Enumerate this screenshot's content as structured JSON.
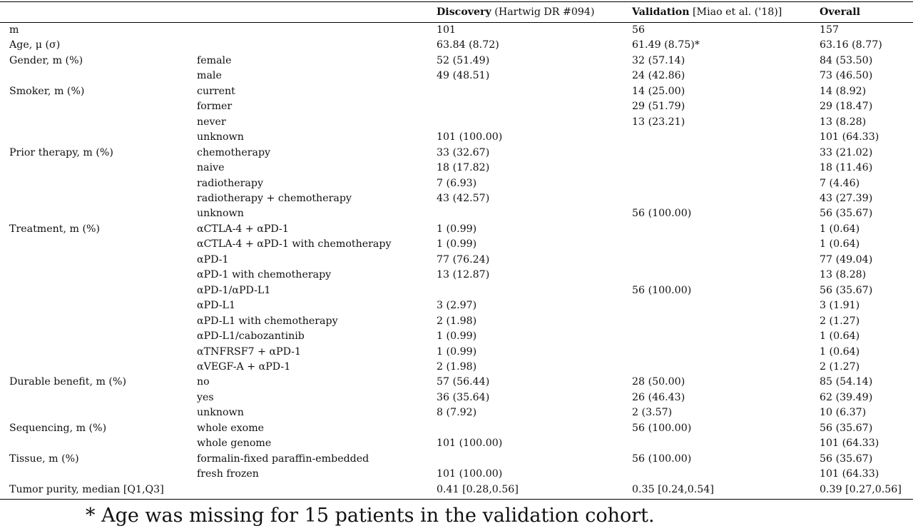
{
  "header": {
    "col_empty_1": "",
    "col_empty_2": "",
    "discovery_bold": "Discovery",
    "discovery_rest": " (Hartwig DR #094)",
    "validation_bold": "Validation",
    "validation_rest": " [Miao et al. ('18)]",
    "overall": "Overall"
  },
  "rows": [
    {
      "var": "m",
      "level": "",
      "discovery": "101",
      "validation": "56",
      "overall": "157"
    },
    {
      "var": "Age, μ (σ)",
      "level": "",
      "discovery": "63.84 (8.72)",
      "validation": "61.49 (8.75)*",
      "overall": "63.16 (8.77)"
    },
    {
      "var": "Gender, m (%)",
      "level": "female",
      "discovery": "52 (51.49)",
      "validation": "32 (57.14)",
      "overall": "84 (53.50)"
    },
    {
      "var": "",
      "level": "male",
      "discovery": "49 (48.51)",
      "validation": "24 (42.86)",
      "overall": "73 (46.50)"
    },
    {
      "var": "Smoker, m (%)",
      "level": "current",
      "discovery": "",
      "validation": "14 (25.00)",
      "overall": "14 (8.92)"
    },
    {
      "var": "",
      "level": "former",
      "discovery": "",
      "validation": "29 (51.79)",
      "overall": "29 (18.47)"
    },
    {
      "var": "",
      "level": "never",
      "discovery": "",
      "validation": "13 (23.21)",
      "overall": "13 (8.28)"
    },
    {
      "var": "",
      "level": "unknown",
      "discovery": "101 (100.00)",
      "validation": "",
      "overall": "101 (64.33)"
    },
    {
      "var": "Prior therapy, m (%)",
      "level": "chemotherapy",
      "discovery": "33 (32.67)",
      "validation": "",
      "overall": "33 (21.02)"
    },
    {
      "var": "",
      "level": "naive",
      "discovery": "18 (17.82)",
      "validation": "",
      "overall": "18 (11.46)"
    },
    {
      "var": "",
      "level": "radiotherapy",
      "discovery": "7 (6.93)",
      "validation": "",
      "overall": "7 (4.46)"
    },
    {
      "var": "",
      "level": "radiotherapy + chemotherapy",
      "discovery": "43 (42.57)",
      "validation": "",
      "overall": "43 (27.39)"
    },
    {
      "var": "",
      "level": "unknown",
      "discovery": "",
      "validation": "56 (100.00)",
      "overall": "56 (35.67)"
    },
    {
      "var": "Treatment, m (%)",
      "level": "αCTLA-4 + αPD-1",
      "discovery": "1 (0.99)",
      "validation": "",
      "overall": "1 (0.64)"
    },
    {
      "var": "",
      "level": "αCTLA-4 + αPD-1 with chemotherapy",
      "discovery": "1 (0.99)",
      "validation": "",
      "overall": "1 (0.64)"
    },
    {
      "var": "",
      "level": "αPD-1",
      "discovery": "77 (76.24)",
      "validation": "",
      "overall": "77 (49.04)"
    },
    {
      "var": "",
      "level": "αPD-1 with chemotherapy",
      "discovery": "13 (12.87)",
      "validation": "",
      "overall": "13 (8.28)"
    },
    {
      "var": "",
      "level": "αPD-1/αPD-L1",
      "discovery": "",
      "validation": "56 (100.00)",
      "overall": "56 (35.67)"
    },
    {
      "var": "",
      "level": "αPD-L1",
      "discovery": "3 (2.97)",
      "validation": "",
      "overall": "3 (1.91)"
    },
    {
      "var": "",
      "level": "αPD-L1 with chemotherapy",
      "discovery": "2 (1.98)",
      "validation": "",
      "overall": "2 (1.27)"
    },
    {
      "var": "",
      "level": "αPD-L1/cabozantinib",
      "discovery": "1 (0.99)",
      "validation": "",
      "overall": "1 (0.64)"
    },
    {
      "var": "",
      "level": "αTNFRSF7 + αPD-1",
      "discovery": "1 (0.99)",
      "validation": "",
      "overall": "1 (0.64)"
    },
    {
      "var": "",
      "level": "αVEGF-A + αPD-1",
      "discovery": "2 (1.98)",
      "validation": "",
      "overall": "2 (1.27)"
    },
    {
      "var": "Durable benefit, m (%)",
      "level": "no",
      "discovery": "57 (56.44)",
      "validation": "28 (50.00)",
      "overall": "85 (54.14)"
    },
    {
      "var": "",
      "level": "yes",
      "discovery": "36 (35.64)",
      "validation": "26 (46.43)",
      "overall": "62 (39.49)"
    },
    {
      "var": "",
      "level": "unknown",
      "discovery": "8 (7.92)",
      "validation": "2 (3.57)",
      "overall": "10 (6.37)"
    },
    {
      "var": "Sequencing, m (%)",
      "level": "whole exome",
      "discovery": "",
      "validation": "56 (100.00)",
      "overall": "56 (35.67)"
    },
    {
      "var": "",
      "level": "whole genome",
      "discovery": "101 (100.00)",
      "validation": "",
      "overall": "101 (64.33)"
    },
    {
      "var": "Tissue, m (%)",
      "level": "formalin-fixed paraffin-embedded",
      "discovery": "",
      "validation": "56 (100.00)",
      "overall": "56 (35.67)"
    },
    {
      "var": "",
      "level": "fresh frozen",
      "discovery": "101 (100.00)",
      "validation": "",
      "overall": "101 (64.33)"
    },
    {
      "var": "Tumor purity, median [Q1,Q3]",
      "level": "",
      "discovery": "0.41 [0.28,0.56]",
      "validation": "0.35 [0.24,0.54]",
      "overall": "0.39 [0.27,0.56]"
    }
  ],
  "footnote": "* Age was missing for 15 patients in the validation cohort."
}
